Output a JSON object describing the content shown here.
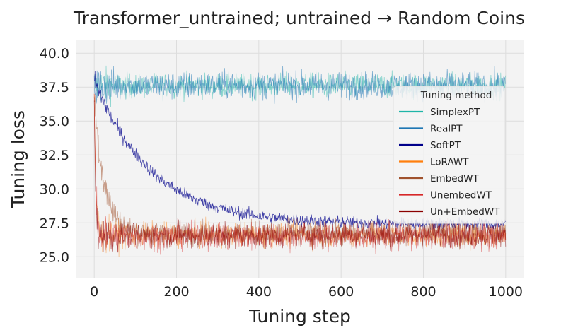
{
  "chart_data": {
    "type": "line",
    "title": "Transformer_untrained; untrained → Random Coins",
    "xlabel": "Tuning step",
    "ylabel": "Tuning loss",
    "xlim": [
      -45,
      1045
    ],
    "ylim": [
      23.4,
      41.0
    ],
    "x_ticks": [
      0,
      200,
      400,
      600,
      800,
      1000
    ],
    "x_tick_labels": [
      "0",
      "200",
      "400",
      "600",
      "800",
      "1000"
    ],
    "y_ticks": [
      25.0,
      27.5,
      30.0,
      32.5,
      35.0,
      37.5,
      40.0
    ],
    "y_tick_labels": [
      "25.0",
      "27.5",
      "30.0",
      "32.5",
      "35.0",
      "37.5",
      "40.0"
    ],
    "grid": true,
    "legend": {
      "title": "Tuning method",
      "placement": "right"
    },
    "series": [
      {
        "name": "SimplexPT",
        "color": "#1fb5a8",
        "start": 38.3,
        "end": 37.6,
        "tau": 1,
        "noise": 0.9,
        "opacity": 0.55
      },
      {
        "name": "RealPT",
        "color": "#1f77b4",
        "start": 38.3,
        "end": 37.6,
        "tau": 1,
        "noise": 1.0,
        "opacity": 0.6
      },
      {
        "name": "SoftPT",
        "color": "#00008b",
        "start": 38.0,
        "end": 27.4,
        "tau": 140,
        "noise": 0.45,
        "opacity": 0.75
      },
      {
        "name": "LoRAWT",
        "color": "#ff7f0e",
        "start": 37.0,
        "end": 26.6,
        "tau": 4,
        "noise": 0.9,
        "opacity": 0.5
      },
      {
        "name": "EmbedWT",
        "color": "#a0522d",
        "start": 36.8,
        "end": 26.7,
        "tau": 25,
        "noise": 0.9,
        "opacity": 0.55
      },
      {
        "name": "UnembedWT",
        "color": "#d62728",
        "start": 37.0,
        "end": 26.5,
        "tau": 4,
        "noise": 1.0,
        "opacity": 0.5
      },
      {
        "name": "Un+EmbedWT",
        "color": "#8b0000",
        "start": 36.5,
        "end": 26.6,
        "tau": 3,
        "noise": 0.9,
        "opacity": 0.6
      }
    ]
  }
}
